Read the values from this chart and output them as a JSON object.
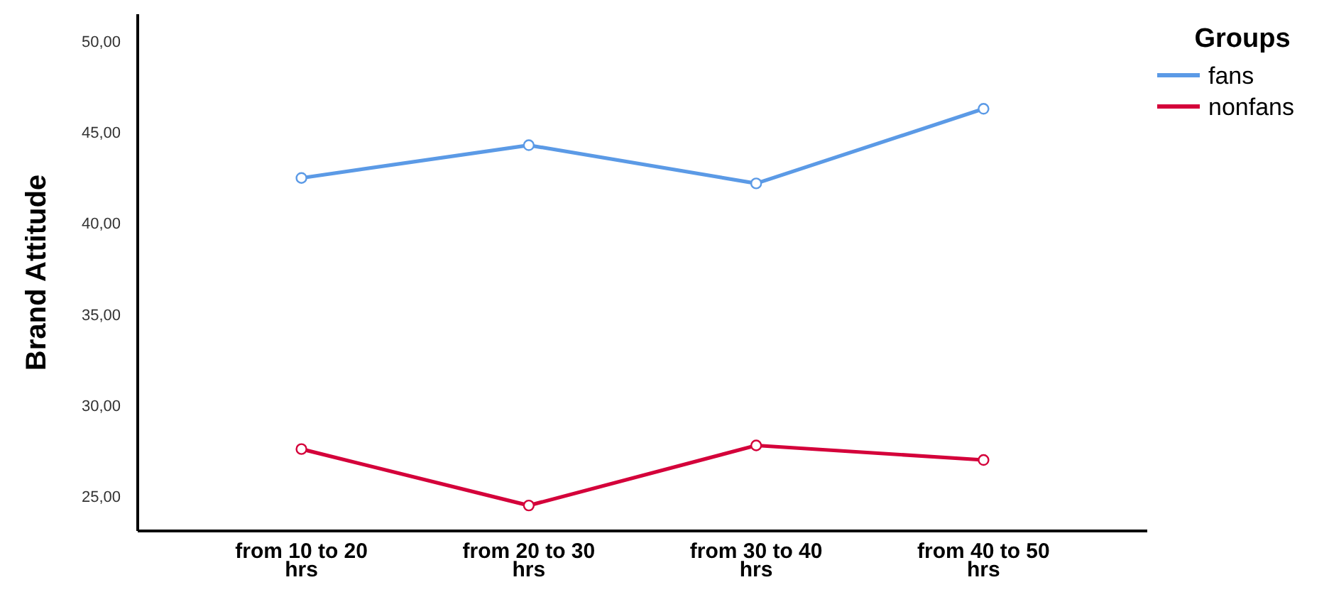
{
  "chart_data": {
    "type": "line",
    "ylabel": "Brand Attitude",
    "legend_title": "Groups",
    "categories": [
      "from 10 to 20 hrs",
      "from 20 to 30 hrs",
      "from 30 to 40 hrs",
      "from 40 to 50 hrs"
    ],
    "series": [
      {
        "name": "fans",
        "color": "#5b9ae6",
        "values": [
          42.5,
          44.3,
          42.2,
          46.3
        ]
      },
      {
        "name": "nonfans",
        "color": "#d4003a",
        "values": [
          27.6,
          24.5,
          27.8,
          27.0
        ]
      }
    ],
    "ylim": [
      23.1,
      51.5
    ],
    "yticks": [
      {
        "value": 25,
        "label": "25,00"
      },
      {
        "value": 30,
        "label": "30,00"
      },
      {
        "value": 35,
        "label": "35,00"
      },
      {
        "value": 40,
        "label": "40,00"
      },
      {
        "value": 45,
        "label": "45,00"
      },
      {
        "value": 50,
        "label": "50,00"
      }
    ],
    "marker": "circle",
    "line_style": "solid",
    "legend": "top right",
    "grid": false
  }
}
